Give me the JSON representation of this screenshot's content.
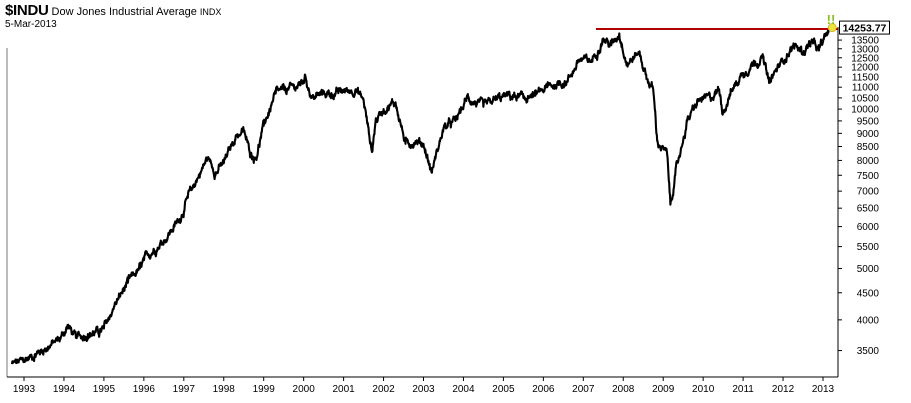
{
  "header": {
    "ticker": "$INDU",
    "name": "Dow Jones Industrial Average",
    "exchange": "INDX",
    "date": "5-Mar-2013"
  },
  "colors": {
    "price_line": "#000000",
    "resistance_line": "#b00000",
    "marker_fill": "#f0e040",
    "alert_marks": "#8ac020",
    "axis": "#000000"
  },
  "chart_data": {
    "type": "line",
    "title": "$INDU Dow Jones Industrial Average INDX",
    "scale": "log",
    "grid": false,
    "ylim": [
      3100,
      14300
    ],
    "y_ticks": [
      3500,
      4000,
      4500,
      5000,
      5500,
      6000,
      6500,
      7000,
      7500,
      8000,
      8500,
      9000,
      9500,
      10000,
      10500,
      11000,
      11500,
      12000,
      12500,
      13000,
      13500
    ],
    "x_ticks": [
      "1993",
      "1994",
      "1995",
      "1996",
      "1997",
      "1998",
      "1999",
      "2000",
      "2001",
      "2002",
      "2003",
      "2004",
      "2005",
      "2006",
      "2007",
      "2008",
      "2009",
      "2010",
      "2011",
      "2012",
      "2013"
    ],
    "last_value_label": "14253.77",
    "alert_label": "!!",
    "resistance_level": 14165,
    "series": [
      {
        "x": [
          1992.7,
          1993.0,
          1993.3,
          1993.6,
          1993.9,
          1994.1,
          1994.3,
          1994.6,
          1994.9,
          1995.0,
          1995.3,
          1995.6,
          1995.9,
          1996.1,
          1996.5,
          1996.9,
          1997.1,
          1997.3,
          1997.6,
          1997.8,
          1998.0,
          1998.3,
          1998.5,
          1998.65,
          1998.8,
          1999.0,
          1999.3,
          1999.6,
          1999.9,
          2000.05,
          2000.2,
          2000.5,
          2000.8,
          2001.0,
          2001.3,
          2001.5,
          2001.71,
          2001.8,
          2002.0,
          2002.3,
          2002.55,
          2002.8,
          2003.0,
          2003.2,
          2003.5,
          2003.8,
          2004.1,
          2004.5,
          2004.8,
          2005.1,
          2005.5,
          2005.8,
          2006.1,
          2006.4,
          2006.6,
          2006.9,
          2007.2,
          2007.5,
          2007.7,
          2007.9,
          2008.1,
          2008.4,
          2008.6,
          2008.75,
          2008.85,
          2009.1,
          2009.18,
          2009.3,
          2009.6,
          2009.9,
          2010.2,
          2010.4,
          2010.5,
          2010.7,
          2011.0,
          2011.3,
          2011.5,
          2011.65,
          2011.85,
          2012.1,
          2012.3,
          2012.5,
          2012.7,
          2012.9,
          2013.0,
          2013.18
        ],
        "y": [
          3300,
          3350,
          3450,
          3560,
          3680,
          3900,
          3700,
          3760,
          3800,
          3850,
          4300,
          4700,
          5000,
          5300,
          5650,
          6200,
          6800,
          7300,
          8100,
          7600,
          7900,
          8900,
          9100,
          8300,
          8100,
          9300,
          10700,
          10900,
          11100,
          11500,
          10500,
          10700,
          10700,
          10800,
          10900,
          10400,
          8300,
          9500,
          10000,
          10300,
          8600,
          8700,
          8600,
          7600,
          9200,
          9500,
          10500,
          10100,
          10400,
          10600,
          10500,
          10600,
          11000,
          11200,
          11300,
          12400,
          12300,
          13600,
          13200,
          13900,
          12200,
          12800,
          11400,
          10900,
          8700,
          8200,
          6600,
          7500,
          9500,
          10400,
          10500,
          10900,
          9900,
          10800,
          11700,
          12300,
          12500,
          11200,
          11900,
          12700,
          13200,
          12800,
          13400,
          12900,
          13400,
          14254
        ]
      }
    ]
  }
}
